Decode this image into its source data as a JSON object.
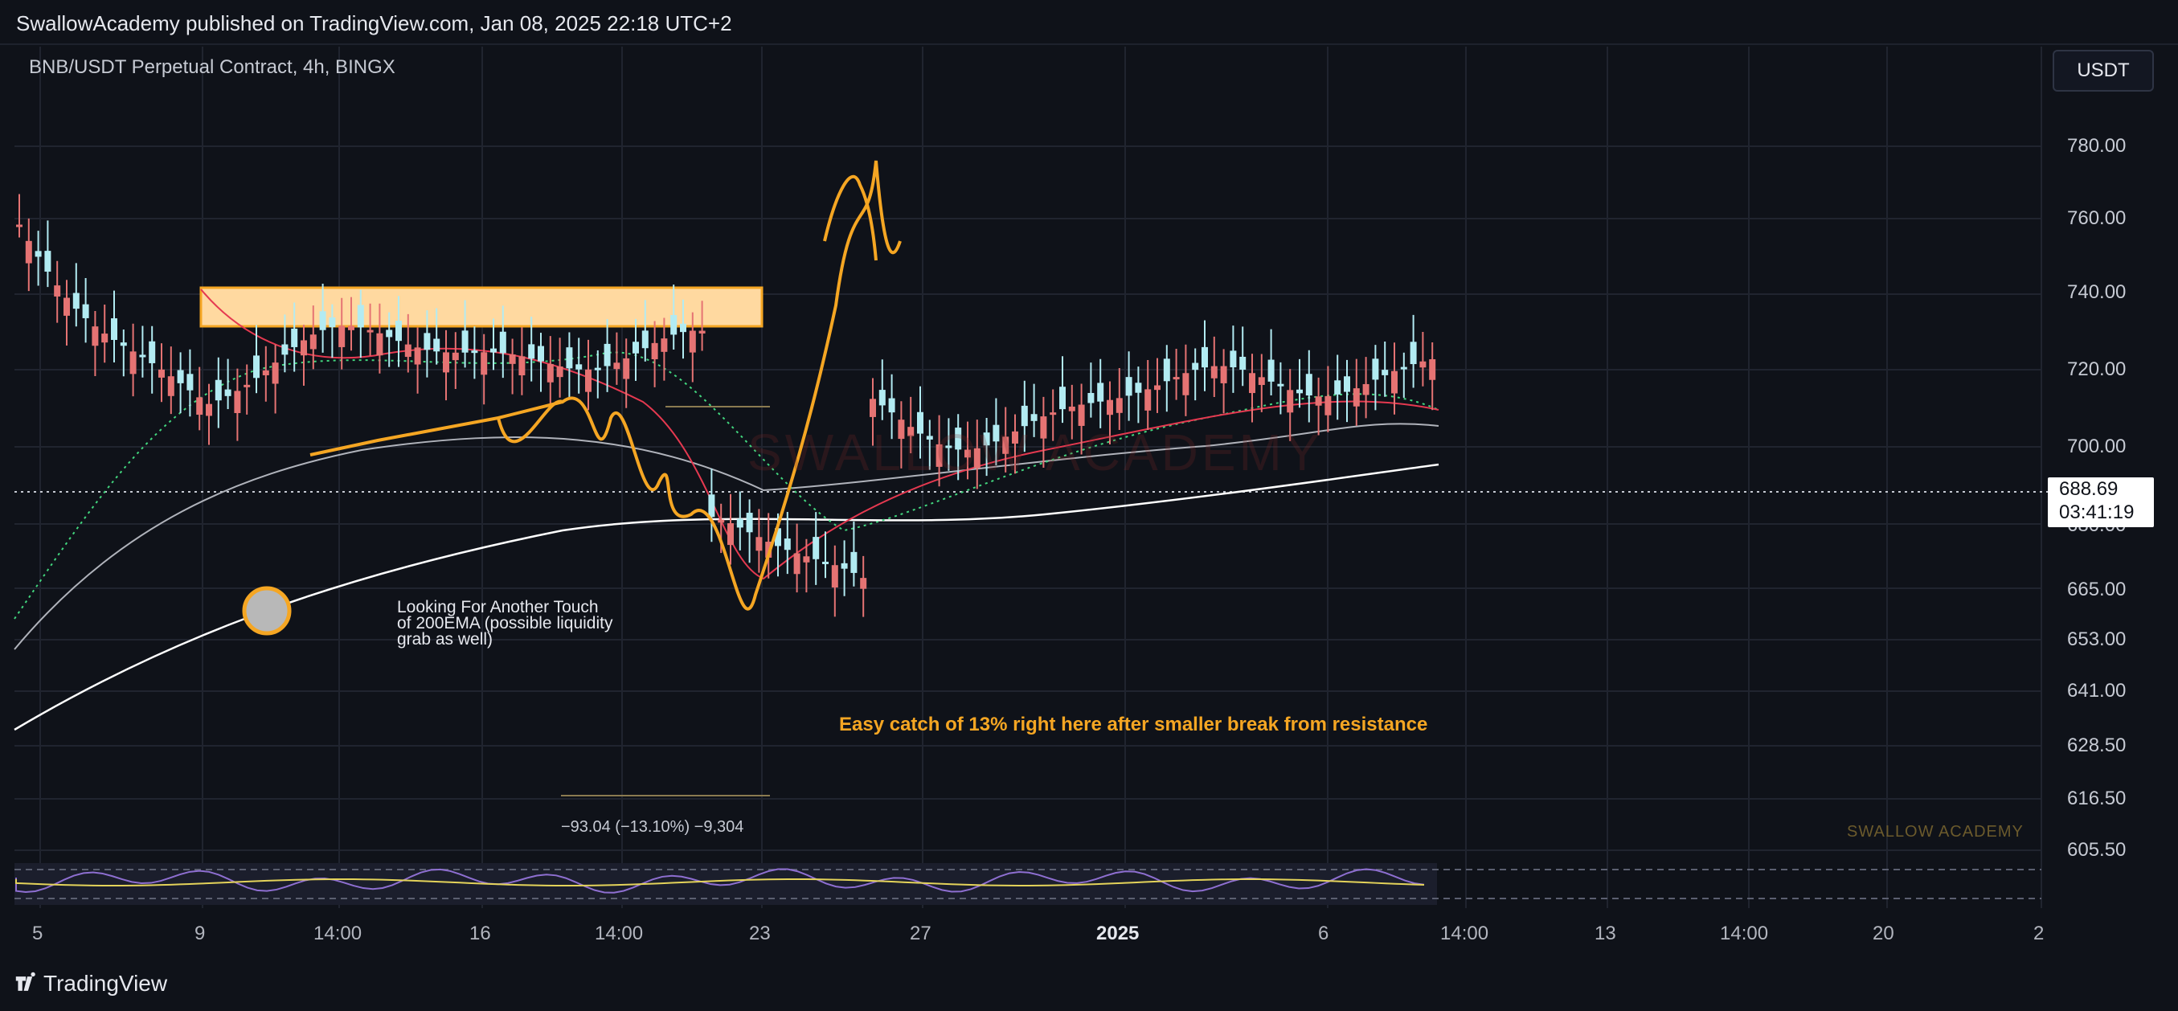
{
  "header": {
    "publisher_line": "SwallowAcademy published on TradingView.com, Jan 08, 2025 22:18 UTC+2"
  },
  "chart_header": {
    "symbol_line": "BNB/USDT Perpetual Contract, 4h, BINGX",
    "currency": "USDT"
  },
  "price_axis": [
    "780.00",
    "760.00",
    "740.00",
    "720.00",
    "700.00",
    "680.00",
    "665.00",
    "653.00",
    "641.00",
    "628.50",
    "616.50",
    "605.50"
  ],
  "last_price": {
    "value": "688.69",
    "countdown": "03:41:19"
  },
  "time_axis": [
    "5",
    "9",
    "14:00",
    "16",
    "14:00",
    "23",
    "27",
    "2025",
    "6",
    "14:00",
    "13",
    "14:00",
    "20",
    "2"
  ],
  "annotations": {
    "touch_note": "Looking For Another Touch\nof 200EMA (possible liquidity\ngrab as well)",
    "catch_note": "Easy catch of 13% right here after smaller break from resistance",
    "measure": "−93.04 (−13.10%) −9,304",
    "watermark_small": "SWALLOW ACADEMY",
    "watermark_big": "SWALLOW ACADEMY"
  },
  "footer": {
    "brand": "TradingView"
  },
  "colors": {
    "background": "#161a25",
    "up": "#b2ebf2",
    "down": "#e57373",
    "annotation": "#f5a623",
    "ema200": "#ffffff",
    "ema100": "#b0b3bb"
  }
}
